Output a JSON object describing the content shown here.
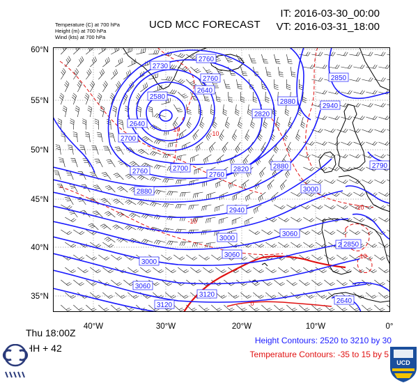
{
  "header": {
    "legend_lines": [
      "Temperature  (C)    at  700 hPa",
      "Height  (m)     at  700 hPa",
      "Wind  (kts)      at  700 hPa"
    ],
    "title": "UCD MCC FORECAST",
    "init_time": "IT: 2016-03-30_00:00",
    "valid_time": "VT: 2016-03-31_18:00"
  },
  "axes": {
    "latitudes": [
      "60°N",
      "55°N",
      "50°N",
      "45°N",
      "40°N",
      "35°N"
    ],
    "longitudes": [
      "40°W",
      "30°W",
      "20°W",
      "10°W",
      "0°"
    ]
  },
  "footer": {
    "day_time": "Thu 18:00Z",
    "forecast_hour": "HH + 42",
    "height_contours_note": "Height Contours: 2520 to 3210 by 30",
    "temperature_contours_note": "Temperature Contours: -35 to 15 by 5"
  },
  "map": {
    "height_labels": [
      "2760",
      "2730",
      "2640",
      "2580",
      "2640",
      "2700",
      "2760",
      "2820",
      "2880",
      "2940",
      "2850",
      "2880",
      "2760",
      "2700",
      "2760",
      "2820",
      "2880",
      "2940",
      "3000",
      "3060",
      "3000",
      "3060",
      "3120",
      "3120",
      "3060",
      "3000",
      "2580",
      "2640",
      "2790",
      "2850"
    ],
    "temp_labels": [
      "-10",
      "-10",
      "-10",
      "-10",
      "0",
      "-10"
    ],
    "colors": {
      "height": "#1a1aff",
      "temperature": "#e01010",
      "coast": "#000000",
      "barb": "#111111"
    }
  },
  "logos": {
    "left": "mcc-logo",
    "right": "ucd-crest-logo",
    "right_text": "UCD"
  }
}
